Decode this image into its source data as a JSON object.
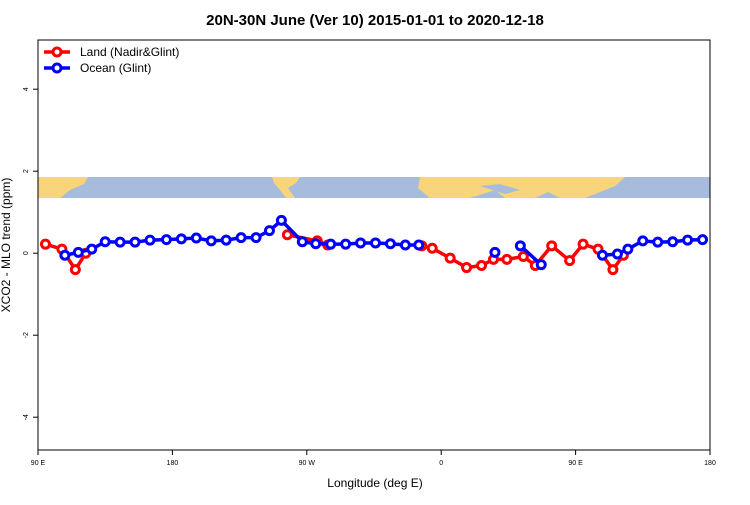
{
  "chart_data": {
    "type": "line",
    "title": "20N-30N June (Ver 10)   2015-01-01 to 2020-12-18",
    "x_label": "Longitude (deg E)",
    "y_label": "XCO2 - MLO trend (ppm)",
    "xlim": [
      90,
      540
    ],
    "ylim": [
      -4.8,
      5.2
    ],
    "xticks": [
      {
        "value": 90,
        "label": "90 E"
      },
      {
        "value": 180,
        "label": "180"
      },
      {
        "value": 270,
        "label": "90 W"
      },
      {
        "value": 360,
        "label": "0"
      },
      {
        "value": 450,
        "label": "90 E"
      },
      {
        "value": 540,
        "label": "180"
      }
    ],
    "yticks": [
      -4,
      -2,
      0,
      2,
      4
    ],
    "legend": "top-left",
    "series": [
      {
        "name": "Land (Nadir&Glint)",
        "color": "#ff0000",
        "x": [
          95,
          106,
          115,
          122,
          190,
          257,
          277,
          284,
          315,
          347,
          354,
          366,
          377,
          387,
          395,
          404,
          415,
          423,
          434,
          446,
          455,
          465,
          475,
          482
        ],
        "values": [
          0.22,
          0.1,
          -0.4,
          0.0,
          null,
          0.45,
          0.3,
          0.2,
          null,
          0.18,
          0.12,
          -0.12,
          -0.35,
          -0.3,
          -0.15,
          -0.15,
          -0.08,
          -0.3,
          0.18,
          -0.18,
          0.22,
          0.1,
          -0.4,
          -0.05
        ]
      },
      {
        "name": "Ocean (Glint)",
        "color": "#0000ff",
        "x": [
          108,
          117,
          126,
          135,
          145,
          155,
          165,
          176,
          186,
          196,
          206,
          216,
          226,
          236,
          245,
          253,
          267,
          276,
          286,
          296,
          306,
          316,
          326,
          336,
          345,
          370,
          396,
          405,
          413,
          427,
          448,
          468,
          478,
          485,
          495,
          505,
          515,
          525,
          535
        ],
        "values": [
          -0.05,
          0.02,
          0.1,
          0.28,
          0.27,
          0.27,
          0.32,
          0.33,
          0.35,
          0.37,
          0.3,
          0.32,
          0.38,
          0.38,
          0.55,
          0.8,
          0.28,
          0.23,
          0.22,
          0.22,
          0.25,
          0.25,
          0.23,
          0.2,
          0.2,
          null,
          0.02,
          null,
          0.18,
          -0.28,
          null,
          -0.05,
          -0.02,
          0.1,
          0.3,
          0.27,
          0.28,
          0.32,
          0.33
        ]
      }
    ]
  }
}
